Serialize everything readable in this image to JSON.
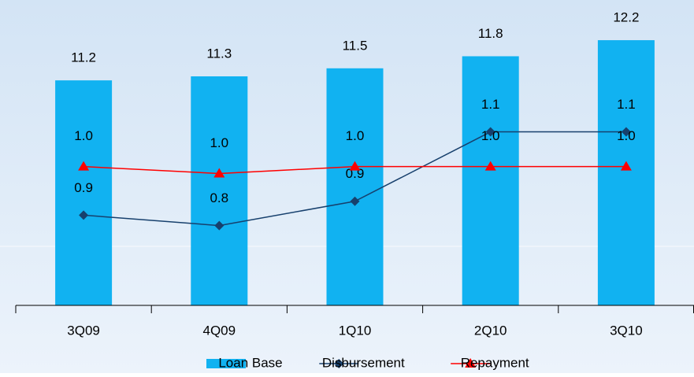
{
  "chart_data": {
    "type": "bar-line",
    "categories": [
      "3Q09",
      "4Q09",
      "1Q10",
      "2Q10",
      "3Q10"
    ],
    "ylim": [
      5.6,
      13.2
    ],
    "y2lim": [
      0.6,
      1.48
    ],
    "series": [
      {
        "name": "Loan Base",
        "type": "bar",
        "color": "#11b2f1",
        "values": [
          11.2,
          11.3,
          11.5,
          11.8,
          12.2
        ]
      },
      {
        "name": "Disbursement",
        "type": "line",
        "axis": "y2",
        "marker": "diamond",
        "color": "#17406d",
        "values": [
          0.86,
          0.83,
          0.9,
          1.1,
          1.1
        ],
        "value_labels": [
          "0.9",
          "0.8",
          "0.9",
          "1.1",
          "1.1"
        ]
      },
      {
        "name": "Repayment",
        "type": "line",
        "axis": "y2",
        "marker": "triangle",
        "color": "#ff0000",
        "values": [
          1.0,
          0.98,
          1.0,
          1.0,
          1.0
        ],
        "value_labels": [
          "1.0",
          "1.0",
          "1.0",
          "1.0",
          "1.0"
        ]
      }
    ],
    "legend": "bottom"
  }
}
